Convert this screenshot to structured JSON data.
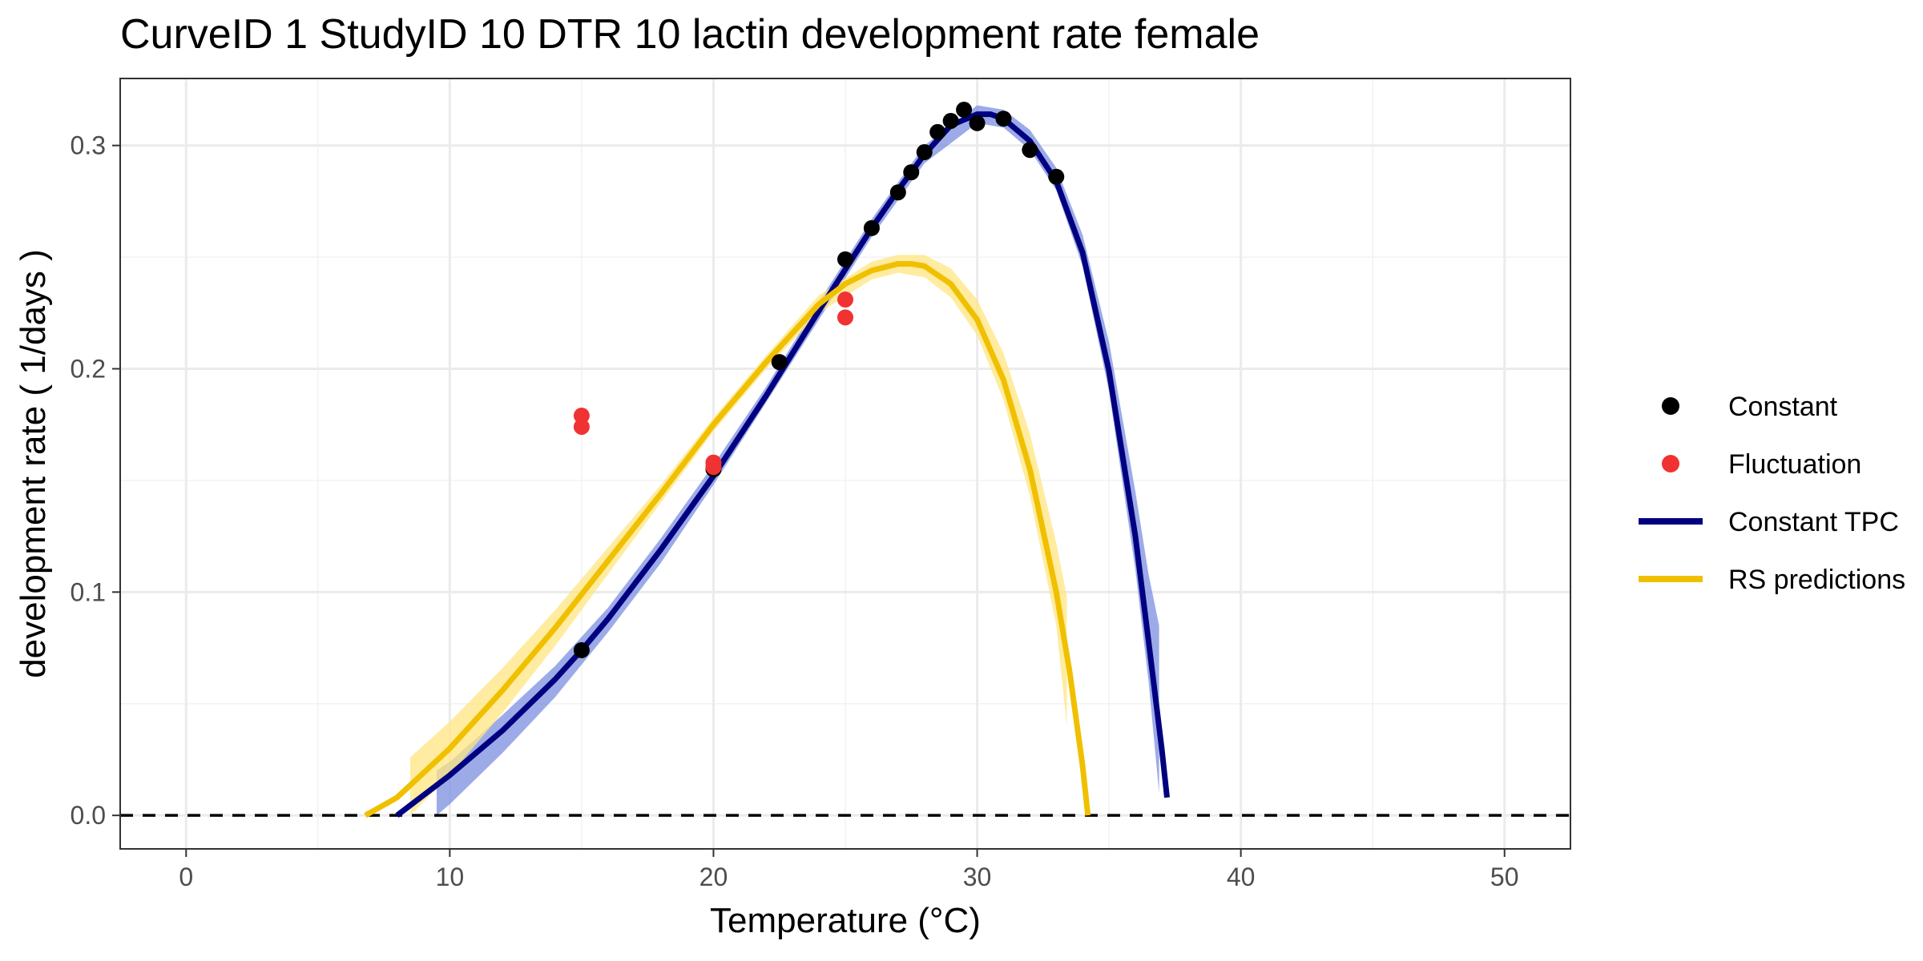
{
  "chart_data": {
    "type": "line",
    "title": "CurveID 1 StudyID 10 DTR 10 lactin development rate female",
    "xlabel": "Temperature (°C)",
    "ylabel": "development rate ( 1/days )",
    "xlim": [
      -2.5,
      52.5
    ],
    "ylim": [
      -0.015,
      0.33
    ],
    "x_ticks": [
      0,
      10,
      20,
      30,
      40,
      50
    ],
    "x_tick_labels": [
      "0",
      "10",
      "20",
      "30",
      "40",
      "50"
    ],
    "y_ticks": [
      0.0,
      0.1,
      0.2,
      0.3
    ],
    "y_tick_labels": [
      "0.0",
      "0.1",
      "0.2",
      "0.3"
    ],
    "grid": true,
    "legend_position": "right",
    "reference_line": {
      "y": 0,
      "style": "dashed",
      "color": "#000000"
    },
    "series": [
      {
        "name": "Constant",
        "kind": "points",
        "color": "#000000",
        "points": [
          [
            15,
            0.074
          ],
          [
            20,
            0.155
          ],
          [
            22.5,
            0.203
          ],
          [
            25,
            0.249
          ],
          [
            26,
            0.263
          ],
          [
            27,
            0.279
          ],
          [
            27.5,
            0.288
          ],
          [
            28,
            0.297
          ],
          [
            28.5,
            0.306
          ],
          [
            29,
            0.311
          ],
          [
            29.5,
            0.316
          ],
          [
            30,
            0.31
          ],
          [
            31,
            0.312
          ],
          [
            32,
            0.298
          ],
          [
            33,
            0.286
          ]
        ]
      },
      {
        "name": "Fluctuation",
        "kind": "points",
        "color": "#f03232",
        "points": [
          [
            15,
            0.179
          ],
          [
            15,
            0.174
          ],
          [
            20,
            0.158
          ],
          [
            20,
            0.156
          ],
          [
            25,
            0.231
          ],
          [
            25,
            0.223
          ]
        ]
      },
      {
        "name": "Constant TPC",
        "kind": "line",
        "color": "#000080",
        "band_color": "#7b8fe0",
        "points": [
          [
            8,
            0.0
          ],
          [
            10,
            0.018
          ],
          [
            12,
            0.038
          ],
          [
            14,
            0.061
          ],
          [
            15,
            0.074
          ],
          [
            16,
            0.088
          ],
          [
            18,
            0.119
          ],
          [
            20,
            0.152
          ],
          [
            22,
            0.188
          ],
          [
            24,
            0.226
          ],
          [
            26,
            0.263
          ],
          [
            27,
            0.28
          ],
          [
            28,
            0.296
          ],
          [
            29,
            0.309
          ],
          [
            30,
            0.314
          ],
          [
            30.5,
            0.314
          ],
          [
            31,
            0.312
          ],
          [
            32,
            0.302
          ],
          [
            33,
            0.284
          ],
          [
            34,
            0.252
          ],
          [
            35,
            0.199
          ],
          [
            36,
            0.125
          ],
          [
            36.5,
            0.078
          ],
          [
            37,
            0.03
          ],
          [
            37.2,
            0.008
          ]
        ],
        "band_lower": [
          [
            9.5,
            0.0
          ],
          [
            10,
            0.005
          ],
          [
            12,
            0.028
          ],
          [
            14,
            0.053
          ],
          [
            16,
            0.082
          ],
          [
            18,
            0.113
          ],
          [
            20,
            0.148
          ],
          [
            22,
            0.185
          ],
          [
            24,
            0.222
          ],
          [
            26,
            0.259
          ],
          [
            28,
            0.292
          ],
          [
            30,
            0.31
          ],
          [
            31,
            0.308
          ],
          [
            32,
            0.298
          ],
          [
            33,
            0.28
          ],
          [
            34,
            0.246
          ],
          [
            35,
            0.19
          ],
          [
            36,
            0.11
          ],
          [
            36.5,
            0.06
          ],
          [
            36.9,
            0.01
          ]
        ],
        "band_upper": [
          [
            9.5,
            0.02
          ],
          [
            10,
            0.024
          ],
          [
            12,
            0.045
          ],
          [
            14,
            0.067
          ],
          [
            16,
            0.093
          ],
          [
            18,
            0.124
          ],
          [
            20,
            0.157
          ],
          [
            22,
            0.192
          ],
          [
            24,
            0.23
          ],
          [
            26,
            0.267
          ],
          [
            28,
            0.3
          ],
          [
            30,
            0.318
          ],
          [
            31,
            0.316
          ],
          [
            32,
            0.307
          ],
          [
            33,
            0.29
          ],
          [
            34,
            0.26
          ],
          [
            35,
            0.212
          ],
          [
            36,
            0.145
          ],
          [
            36.5,
            0.108
          ],
          [
            36.9,
            0.085
          ]
        ]
      },
      {
        "name": "RS predictions",
        "kind": "line",
        "color": "#f0c000",
        "band_color": "#ffe680",
        "points": [
          [
            6.8,
            0.0
          ],
          [
            8,
            0.008
          ],
          [
            10,
            0.03
          ],
          [
            12,
            0.056
          ],
          [
            14,
            0.084
          ],
          [
            16,
            0.114
          ],
          [
            18,
            0.144
          ],
          [
            20,
            0.175
          ],
          [
            22,
            0.203
          ],
          [
            24,
            0.229
          ],
          [
            25,
            0.238
          ],
          [
            26,
            0.244
          ],
          [
            27,
            0.247
          ],
          [
            27.5,
            0.247
          ],
          [
            28,
            0.246
          ],
          [
            29,
            0.238
          ],
          [
            30,
            0.222
          ],
          [
            31,
            0.195
          ],
          [
            32,
            0.155
          ],
          [
            33,
            0.1
          ],
          [
            33.5,
            0.065
          ],
          [
            34,
            0.022
          ],
          [
            34.2,
            0.0
          ]
        ],
        "band_lower": [
          [
            8.5,
            0.0
          ],
          [
            10,
            0.018
          ],
          [
            12,
            0.046
          ],
          [
            14,
            0.076
          ],
          [
            16,
            0.108
          ],
          [
            18,
            0.14
          ],
          [
            20,
            0.172
          ],
          [
            22,
            0.2
          ],
          [
            24,
            0.225
          ],
          [
            26,
            0.24
          ],
          [
            27,
            0.243
          ],
          [
            28,
            0.241
          ],
          [
            29,
            0.232
          ],
          [
            30,
            0.215
          ],
          [
            31,
            0.186
          ],
          [
            32,
            0.143
          ],
          [
            33,
            0.085
          ],
          [
            33.4,
            0.04
          ]
        ],
        "band_upper": [
          [
            8.5,
            0.026
          ],
          [
            10,
            0.042
          ],
          [
            12,
            0.066
          ],
          [
            14,
            0.092
          ],
          [
            16,
            0.12
          ],
          [
            18,
            0.148
          ],
          [
            20,
            0.178
          ],
          [
            22,
            0.206
          ],
          [
            24,
            0.233
          ],
          [
            26,
            0.248
          ],
          [
            27,
            0.251
          ],
          [
            28,
            0.251
          ],
          [
            29,
            0.245
          ],
          [
            30,
            0.231
          ],
          [
            31,
            0.207
          ],
          [
            32,
            0.171
          ],
          [
            33,
            0.122
          ],
          [
            33.4,
            0.098
          ]
        ]
      }
    ]
  }
}
